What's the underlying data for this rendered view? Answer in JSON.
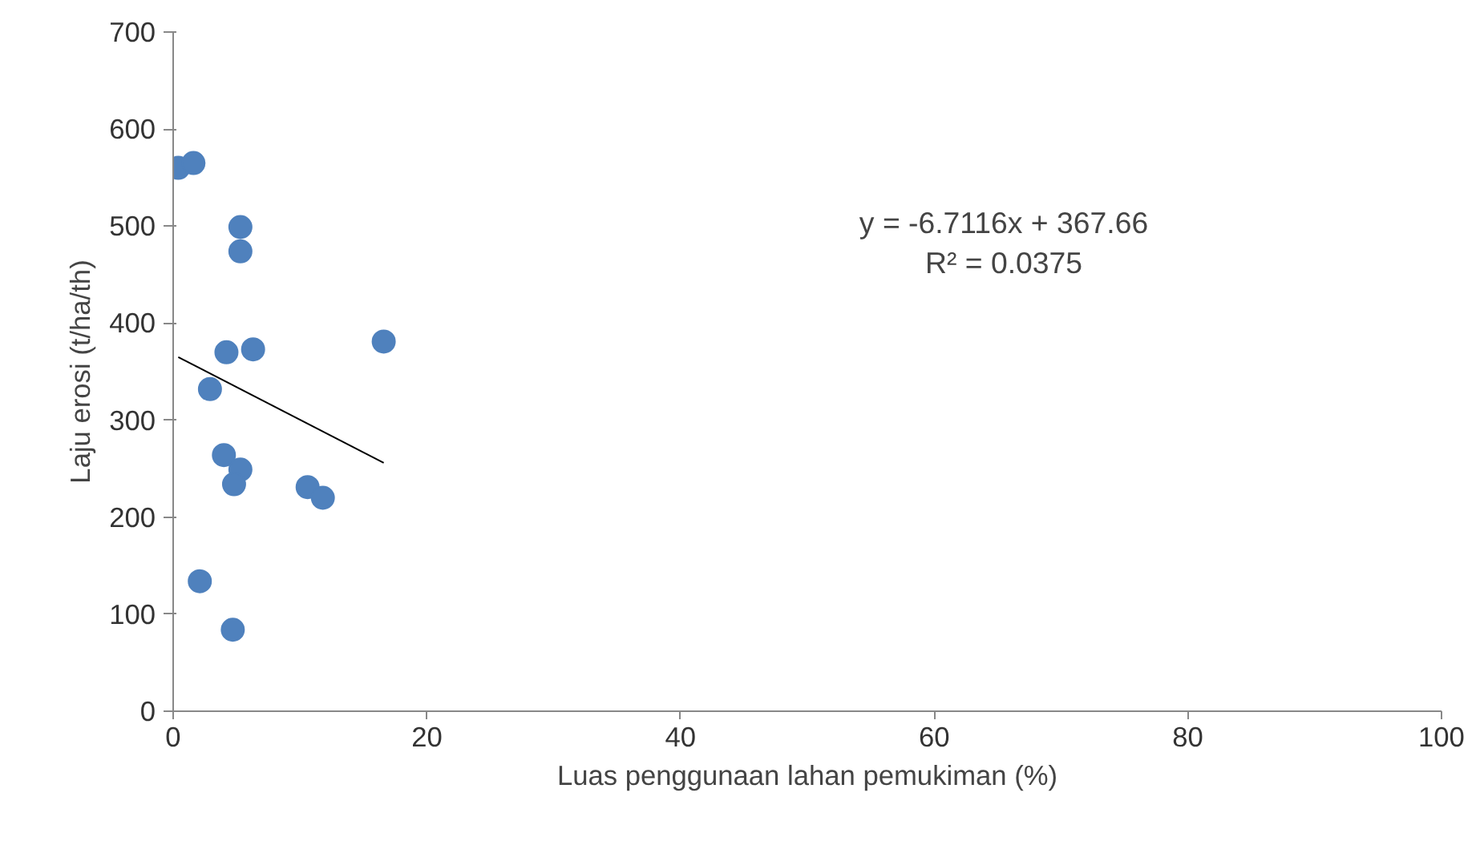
{
  "chart_data": {
    "type": "scatter",
    "xlabel": "Luas penggunaan lahan pemukiman (%)",
    "ylabel": "Laju erosi (t/ha/th)",
    "xlim": [
      0,
      100
    ],
    "ylim": [
      0,
      700
    ],
    "xticks": [
      0,
      20,
      40,
      60,
      80,
      100
    ],
    "yticks": [
      0,
      100,
      200,
      300,
      400,
      500,
      600,
      700
    ],
    "grid": false,
    "legend": false,
    "marker": "circle",
    "annotations": [
      "y = -6.7116x + 367.66",
      "R² = 0.0375"
    ],
    "series": [
      {
        "type": "scatter",
        "color": "#4f81bd",
        "x": [
          0.4,
          1.6,
          5.3,
          5.3,
          4.2,
          6.3,
          16.6,
          2.9,
          4.0,
          5.3,
          4.8,
          10.6,
          11.8,
          2.1,
          4.7
        ],
        "values": [
          560,
          565,
          499,
          474,
          370,
          373,
          381,
          332,
          264,
          249,
          234,
          231,
          220,
          134,
          84
        ]
      },
      {
        "type": "line",
        "marker": "none",
        "color": "#000000",
        "x": [
          0.4,
          16.6
        ],
        "values": [
          365,
          256
        ]
      }
    ]
  }
}
